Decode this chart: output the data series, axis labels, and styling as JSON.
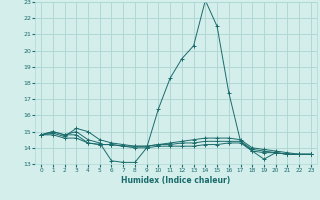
{
  "xlabel": "Humidex (Indice chaleur)",
  "bg_color": "#d4eeec",
  "grid_color": "#b0d8d4",
  "line_color": "#1a6b6b",
  "xlim": [
    -0.5,
    23.5
  ],
  "ylim": [
    13,
    23
  ],
  "xticks": [
    0,
    1,
    2,
    3,
    4,
    5,
    6,
    7,
    8,
    9,
    10,
    11,
    12,
    13,
    14,
    15,
    16,
    17,
    18,
    19,
    20,
    21,
    22,
    23
  ],
  "yticks": [
    13,
    14,
    15,
    16,
    17,
    18,
    19,
    20,
    21,
    22,
    23
  ],
  "series": [
    [
      14.8,
      15.0,
      14.8,
      15.0,
      14.5,
      14.3,
      13.2,
      13.1,
      13.1,
      14.0,
      16.4,
      18.3,
      19.5,
      20.3,
      23.1,
      21.5,
      17.4,
      14.4,
      13.8,
      13.3,
      13.7,
      13.6,
      13.6,
      13.6
    ],
    [
      14.8,
      15.0,
      14.8,
      14.8,
      14.3,
      14.2,
      14.2,
      14.1,
      14.0,
      14.0,
      14.1,
      14.1,
      14.1,
      14.1,
      14.2,
      14.2,
      14.3,
      14.3,
      13.8,
      13.7,
      13.7,
      13.6,
      13.6,
      13.6
    ],
    [
      14.8,
      14.8,
      14.6,
      14.6,
      14.3,
      14.2,
      14.2,
      14.1,
      14.1,
      14.1,
      14.2,
      14.2,
      14.3,
      14.3,
      14.4,
      14.4,
      14.4,
      14.4,
      13.9,
      13.8,
      13.7,
      13.6,
      13.6,
      13.6
    ],
    [
      14.8,
      14.9,
      14.7,
      15.2,
      15.0,
      14.5,
      14.3,
      14.2,
      14.1,
      14.1,
      14.2,
      14.3,
      14.4,
      14.5,
      14.6,
      14.6,
      14.6,
      14.5,
      14.0,
      13.9,
      13.8,
      13.7,
      13.6,
      13.6
    ]
  ]
}
